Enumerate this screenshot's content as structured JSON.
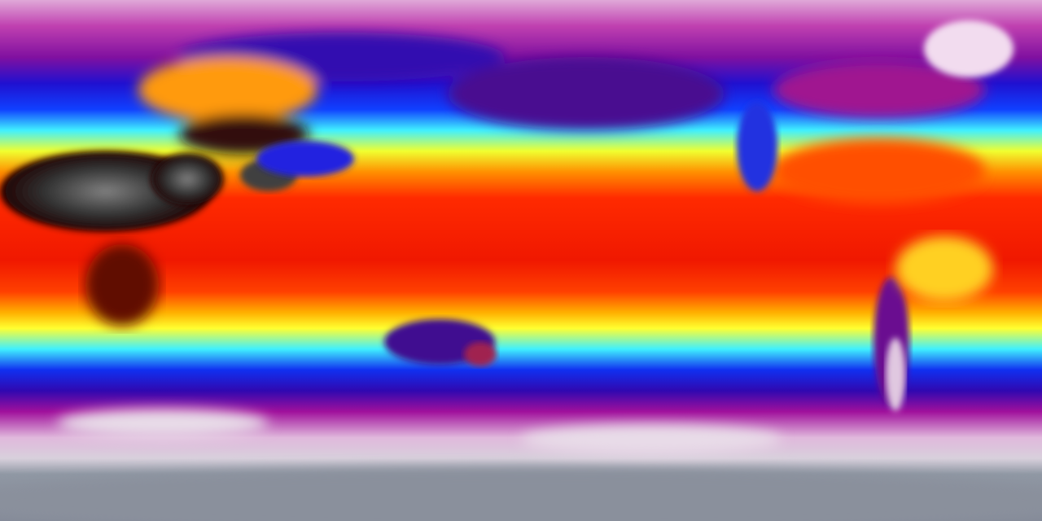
{
  "map": {
    "projection": "equirectangular",
    "subject": "global-moisture-field",
    "colors": {
      "polar_high": "#d8b0d0",
      "magenta": "#b0109c",
      "purple": "#5a0a8a",
      "blue": "#1010e0",
      "cyan": "#40f0ff",
      "yellow": "#fff020",
      "orange": "#ff8c00",
      "red": "#ff2000",
      "deep_red": "#d01000",
      "desert": "#3a3a3a",
      "antarctica": "#8a909c",
      "snow": "#f0e6f0"
    }
  }
}
